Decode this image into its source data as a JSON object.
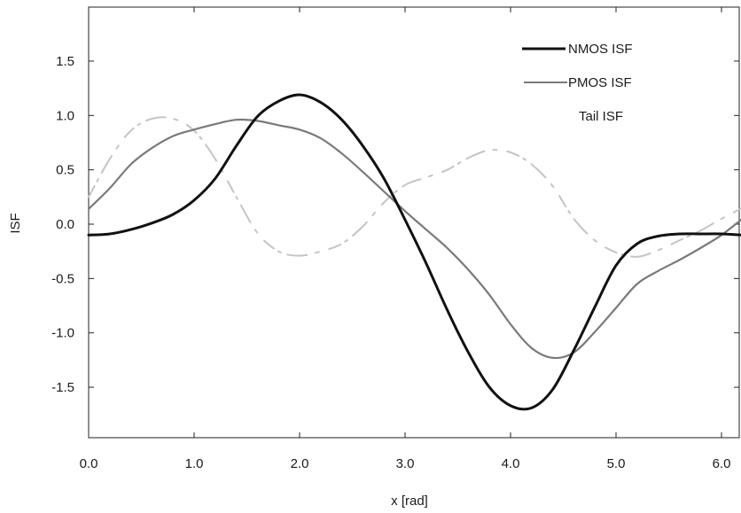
{
  "chart_data": {
    "type": "line",
    "xlabel": "x [rad]",
    "ylabel": "ISF",
    "xlim": [
      0.0,
      6.2
    ],
    "ylim": [
      -2.0,
      2.0
    ],
    "xticks": [
      0.0,
      1.0,
      2.0,
      3.0,
      4.0,
      5.0,
      6.0
    ],
    "xtick_labels": [
      "0.0",
      "1.0",
      "2.0",
      "3.0",
      "4.0",
      "5.0",
      "6.0"
    ],
    "yticks": [
      1.5,
      1.0,
      0.5,
      0.0,
      -0.5,
      -1.0,
      -1.5
    ],
    "ytick_labels": [
      "1.5",
      "1.0",
      "0.5",
      "0.0",
      "-0.5",
      "-1.0",
      "-1.5"
    ],
    "grid": false,
    "legend_position": "top-right",
    "series": [
      {
        "name": "NMOS ISF",
        "color": "#111111",
        "x": [
          0.0,
          0.2,
          0.4,
          0.6,
          0.8,
          1.0,
          1.2,
          1.4,
          1.6,
          1.8,
          2.0,
          2.2,
          2.4,
          2.6,
          2.8,
          3.0,
          3.2,
          3.4,
          3.6,
          3.8,
          4.0,
          4.2,
          4.4,
          4.6,
          4.8,
          5.0,
          5.2,
          5.4,
          5.6,
          5.8,
          6.0,
          6.2
        ],
        "y": [
          -0.1,
          -0.09,
          -0.05,
          0.01,
          0.09,
          0.22,
          0.42,
          0.72,
          0.99,
          1.13,
          1.19,
          1.12,
          0.96,
          0.72,
          0.42,
          0.04,
          -0.36,
          -0.79,
          -1.18,
          -1.5,
          -1.67,
          -1.69,
          -1.52,
          -1.16,
          -0.76,
          -0.38,
          -0.18,
          -0.11,
          -0.09,
          -0.09,
          -0.09,
          -0.1
        ]
      },
      {
        "name": "PMOS ISF",
        "color": "#7a7a7a",
        "x": [
          0.0,
          0.2,
          0.4,
          0.6,
          0.8,
          1.0,
          1.2,
          1.4,
          1.6,
          1.8,
          2.0,
          2.2,
          2.4,
          2.6,
          2.8,
          3.0,
          3.2,
          3.4,
          3.6,
          3.8,
          4.0,
          4.2,
          4.4,
          4.6,
          4.8,
          5.0,
          5.2,
          5.4,
          5.6,
          5.8,
          6.0,
          6.2
        ],
        "y": [
          0.14,
          0.33,
          0.55,
          0.7,
          0.81,
          0.87,
          0.92,
          0.96,
          0.95,
          0.91,
          0.87,
          0.79,
          0.65,
          0.48,
          0.3,
          0.12,
          -0.05,
          -0.22,
          -0.42,
          -0.65,
          -0.92,
          -1.14,
          -1.23,
          -1.18,
          -0.99,
          -0.77,
          -0.55,
          -0.43,
          -0.33,
          -0.22,
          -0.1,
          0.05
        ]
      },
      {
        "name": "Tail ISF",
        "color": "#c4c4c4",
        "x": [
          0.0,
          0.2,
          0.4,
          0.6,
          0.8,
          1.0,
          1.2,
          1.4,
          1.6,
          1.8,
          2.0,
          2.2,
          2.4,
          2.6,
          2.8,
          3.0,
          3.2,
          3.4,
          3.6,
          3.8,
          4.0,
          4.2,
          4.4,
          4.6,
          4.8,
          5.0,
          5.2,
          5.4,
          5.6,
          5.8,
          6.0,
          6.2
        ],
        "y": [
          0.25,
          0.6,
          0.86,
          0.97,
          0.97,
          0.86,
          0.6,
          0.25,
          -0.08,
          -0.25,
          -0.29,
          -0.25,
          -0.18,
          -0.02,
          0.2,
          0.36,
          0.43,
          0.5,
          0.61,
          0.68,
          0.66,
          0.55,
          0.35,
          0.05,
          -0.15,
          -0.26,
          -0.3,
          -0.24,
          -0.15,
          -0.06,
          0.05,
          0.15
        ]
      }
    ]
  }
}
